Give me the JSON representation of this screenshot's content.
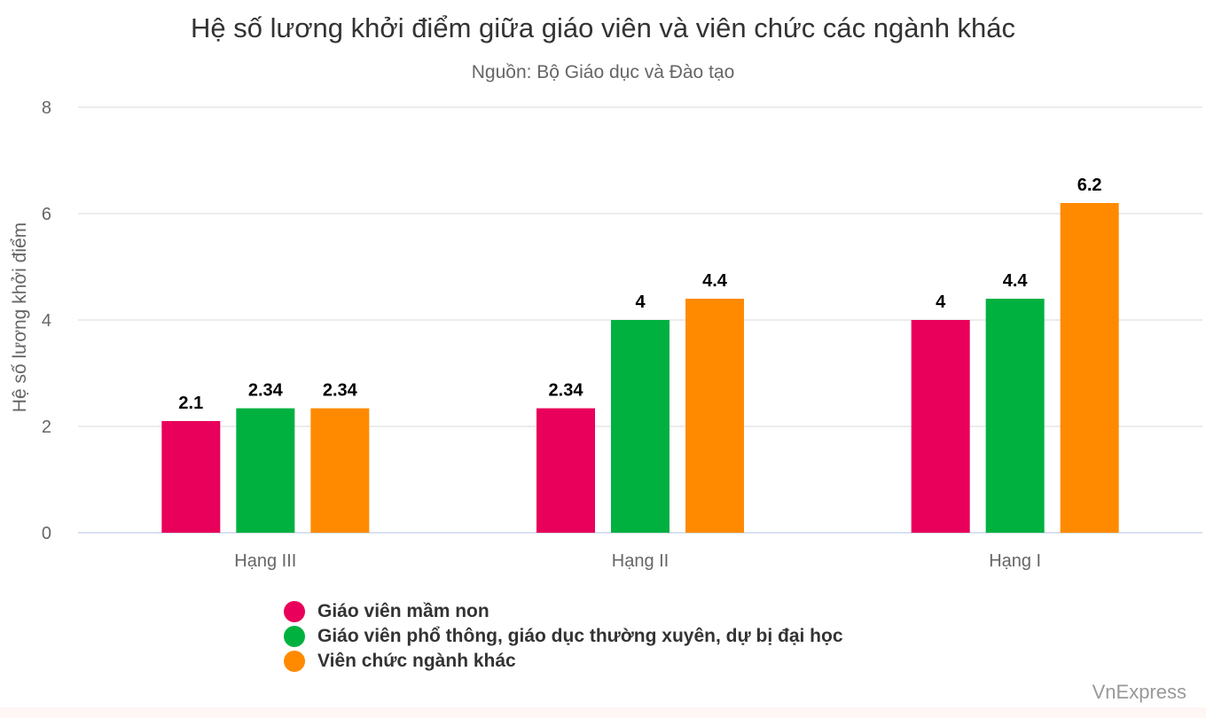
{
  "chart_data": {
    "type": "bar",
    "title": "Hệ số lương khởi điểm giữa giáo viên và viên chức các ngành khác",
    "subtitle": "Nguồn: Bộ Giáo dục và Đào tạo",
    "xlabel": "",
    "ylabel": "Hệ số lương khởi điểm",
    "categories": [
      "Hạng III",
      "Hạng II",
      "Hạng I"
    ],
    "ylim": [
      0,
      8
    ],
    "yticks": [
      0,
      2,
      4,
      6,
      8
    ],
    "grid": true,
    "legend_position": "bottom",
    "series": [
      {
        "name": "Giáo viên mầm non",
        "color": "#e8005a",
        "values": [
          2.1,
          2.34,
          4
        ],
        "labels": [
          "2.1",
          "2.34",
          "4"
        ]
      },
      {
        "name": "Giáo viên phổ thông, giáo dục thường xuyên, dự bị đại học",
        "color": "#00b140",
        "values": [
          2.34,
          4,
          4.4
        ],
        "labels": [
          "2.34",
          "4",
          "4.4"
        ]
      },
      {
        "name": "Viên chức ngành khác",
        "color": "#ff8a00",
        "values": [
          2.34,
          4.4,
          6.2
        ],
        "labels": [
          "2.34",
          "4.4",
          "6.2"
        ]
      }
    ]
  },
  "credit": "VnExpress"
}
